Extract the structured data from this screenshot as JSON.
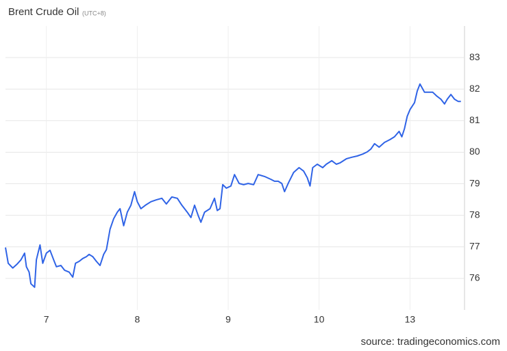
{
  "chart_data": {
    "type": "line",
    "title": "Brent Crude Oil",
    "subtitle": "(UTC+8)",
    "source": "source: tradingeconomics.com",
    "xlim": [
      -0.45,
      4.6
    ],
    "xticks": [
      {
        "value": 0,
        "label": "7"
      },
      {
        "value": 1,
        "label": "8"
      },
      {
        "value": 2,
        "label": "9"
      },
      {
        "value": 3,
        "label": "10"
      },
      {
        "value": 4,
        "label": "13"
      }
    ],
    "ylim": [
      75,
      84
    ],
    "yticks": [
      76,
      77,
      78,
      79,
      80,
      81,
      82,
      83
    ],
    "grid": true,
    "x": [
      -0.45,
      -0.42,
      -0.37,
      -0.32,
      -0.28,
      -0.24,
      -0.22,
      -0.19,
      -0.17,
      -0.13,
      -0.11,
      -0.07,
      -0.04,
      0,
      0.04,
      0.08,
      0.11,
      0.16,
      0.2,
      0.25,
      0.29,
      0.32,
      0.36,
      0.4,
      0.44,
      0.47,
      0.51,
      0.55,
      0.59,
      0.63,
      0.66,
      0.7,
      0.74,
      0.78,
      0.81,
      0.85,
      0.89,
      0.93,
      0.97,
      1.0,
      1.04,
      1.09,
      1.15,
      1.21,
      1.27,
      1.32,
      1.38,
      1.44,
      1.49,
      1.55,
      1.59,
      1.63,
      1.67,
      1.7,
      1.74,
      1.8,
      1.85,
      1.88,
      1.91,
      1.94,
      1.98,
      2.03,
      2.07,
      2.12,
      2.17,
      2.22,
      2.28,
      2.33,
      2.4,
      2.47,
      2.51,
      2.55,
      2.59,
      2.62,
      2.66,
      2.72,
      2.78,
      2.83,
      2.87,
      2.9,
      2.93,
      2.98,
      3.04,
      3.08,
      3.14,
      3.19,
      3.23,
      3.3,
      3.36,
      3.42,
      3.48,
      3.53,
      3.57,
      3.61,
      3.66,
      3.72,
      3.78,
      3.83,
      3.88,
      3.91,
      3.94,
      3.97,
      4.0,
      4.05,
      4.08,
      4.11,
      4.16,
      4.2,
      4.25,
      4.29,
      4.34,
      4.38,
      4.41,
      4.45,
      4.49,
      4.53,
      4.56
    ],
    "series": [
      {
        "name": "Brent Crude Oil",
        "color": "#2f63e6",
        "values": [
          76.98,
          76.48,
          76.33,
          76.46,
          76.59,
          76.8,
          76.37,
          76.2,
          75.83,
          75.72,
          76.59,
          77.06,
          76.48,
          76.8,
          76.89,
          76.59,
          76.37,
          76.41,
          76.26,
          76.2,
          76.04,
          76.48,
          76.54,
          76.63,
          76.69,
          76.76,
          76.69,
          76.54,
          76.41,
          76.76,
          76.91,
          77.56,
          77.89,
          78.1,
          78.21,
          77.67,
          78.1,
          78.32,
          78.75,
          78.43,
          78.21,
          78.32,
          78.43,
          78.49,
          78.54,
          78.36,
          78.58,
          78.54,
          78.32,
          78.1,
          77.93,
          78.32,
          77.99,
          77.78,
          78.1,
          78.21,
          78.54,
          78.15,
          78.21,
          78.97,
          78.86,
          78.93,
          79.29,
          79.01,
          78.97,
          79.01,
          78.97,
          79.29,
          79.23,
          79.14,
          79.08,
          79.08,
          79.01,
          78.75,
          79.01,
          79.36,
          79.51,
          79.4,
          79.19,
          78.93,
          79.51,
          79.62,
          79.51,
          79.62,
          79.73,
          79.62,
          79.66,
          79.79,
          79.84,
          79.88,
          79.94,
          80.01,
          80.1,
          80.27,
          80.16,
          80.31,
          80.4,
          80.49,
          80.66,
          80.49,
          80.75,
          81.14,
          81.35,
          81.57,
          81.94,
          82.16,
          81.9,
          81.9,
          81.9,
          81.79,
          81.68,
          81.53,
          81.68,
          81.83,
          81.68,
          81.61,
          81.61
        ]
      }
    ]
  }
}
